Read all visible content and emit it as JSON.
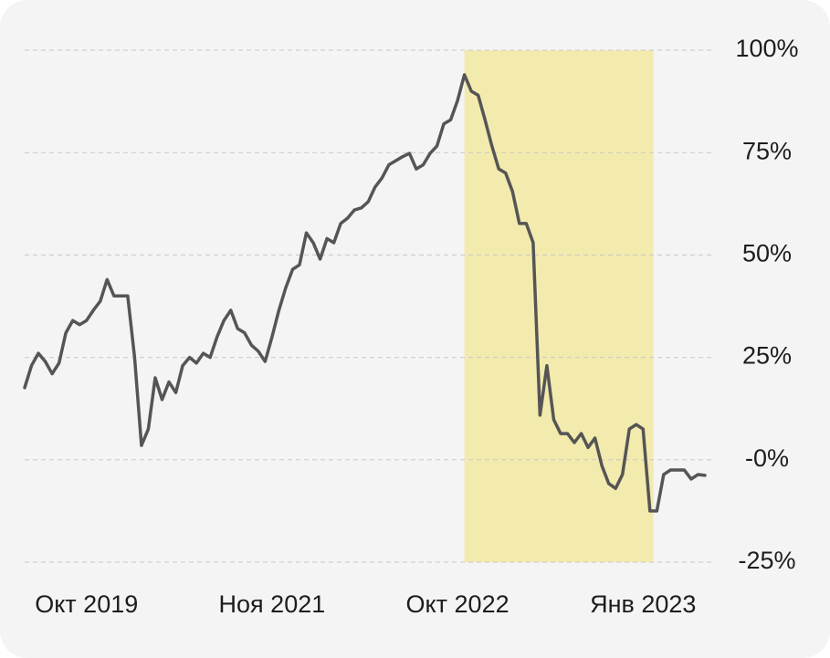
{
  "chart_data": {
    "type": "line",
    "categories": [
      null,
      null,
      null,
      null,
      null,
      null,
      null,
      null,
      null,
      "Окт 2019",
      null,
      null,
      null,
      null,
      null,
      null,
      null,
      null,
      null,
      null,
      null,
      null,
      null,
      null,
      null,
      null,
      null,
      null,
      null,
      null,
      null,
      null,
      null,
      null,
      null,
      null,
      "Ноя 2021",
      null,
      null,
      null,
      null,
      null,
      null,
      null,
      null,
      null,
      null,
      null,
      null,
      null,
      null,
      null,
      null,
      null,
      null,
      null,
      null,
      null,
      null,
      null,
      null,
      null,
      null,
      "Окт 2022",
      null,
      null,
      null,
      null,
      null,
      null,
      null,
      null,
      null,
      null,
      null,
      null,
      null,
      null,
      null,
      null,
      null,
      null,
      null,
      null,
      null,
      null,
      null,
      null,
      null,
      null,
      "Янв 2023",
      null,
      null,
      null,
      null,
      null,
      null,
      null,
      null,
      null
    ],
    "values": [
      17.6,
      23,
      26,
      24,
      21,
      23.6,
      31,
      34,
      33,
      34,
      36.5,
      38.7,
      44,
      40,
      40,
      40,
      25,
      3.5,
      7.5,
      20,
      14.7,
      19,
      16.4,
      23,
      25,
      23.6,
      26,
      25,
      30,
      34,
      36.5,
      32,
      31,
      28,
      26.5,
      24,
      30,
      36.5,
      42,
      46.5,
      47.6,
      55.4,
      53,
      49,
      54,
      53,
      57.7,
      59,
      61,
      61.5,
      63,
      66.6,
      68.8,
      72,
      73,
      74,
      74.8,
      71,
      72,
      74.8,
      76.6,
      82,
      83,
      87.7,
      94,
      90,
      89,
      83,
      76.6,
      71,
      70,
      65.5,
      57.7,
      57.7,
      53,
      10.9,
      23,
      9.8,
      6.4,
      6.4,
      4.2,
      6.4,
      3,
      5.3,
      -1.4,
      -5.8,
      -7,
      -3.6,
      7.5,
      8.6,
      7.5,
      -12.5,
      -12.5,
      -3.6,
      -2.5,
      -2.5,
      -2.5,
      -4.7,
      -3.6,
      -3.8
    ],
    "color": "#555555",
    "shaded_range": [
      64,
      91.5
    ],
    "shade_color": "#f3eaae",
    "ylim": [
      -25,
      100
    ],
    "yticks": [
      {
        "value": 100,
        "label": "100%"
      },
      {
        "value": 75,
        "label": "75%"
      },
      {
        "value": 50,
        "label": "50%"
      },
      {
        "value": 25,
        "label": "25%"
      },
      {
        "value": 0,
        "label": "-0%"
      },
      {
        "value": -25,
        "label": "-25%"
      }
    ],
    "grid": true
  }
}
